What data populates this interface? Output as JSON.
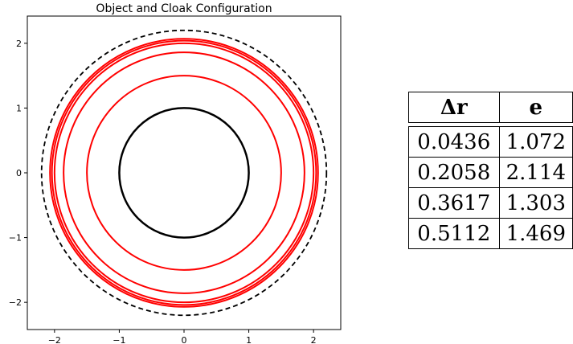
{
  "chart_data": [
    {
      "type": "circles",
      "title": "Object and Cloak Configuration",
      "xlabel": "",
      "ylabel": "",
      "xlim": [
        -2.42,
        2.42
      ],
      "ylim": [
        -2.42,
        2.42
      ],
      "xticks": [
        -2,
        -1,
        0,
        1,
        2
      ],
      "yticks": [
        -2,
        -1,
        0,
        1,
        2
      ],
      "tick_labels": [
        "−2",
        "−1",
        "0",
        "1",
        "2"
      ],
      "grid": false,
      "object_radius": 1.0,
      "object_color": "#000000",
      "cloak_radii": [
        1.5,
        1.86,
        2.0,
        2.04,
        2.07
      ],
      "cloak_color": "#ff0000",
      "boundary_radius": 2.2,
      "boundary_style": "dashed",
      "boundary_color": "#000000"
    },
    {
      "type": "table",
      "headers": [
        "Δr",
        "e"
      ],
      "rows": [
        [
          "0.0436",
          "1.072"
        ],
        [
          "0.2058",
          "2.114"
        ],
        [
          "0.3617",
          "1.303"
        ],
        [
          "0.5112",
          "1.469"
        ]
      ]
    }
  ]
}
